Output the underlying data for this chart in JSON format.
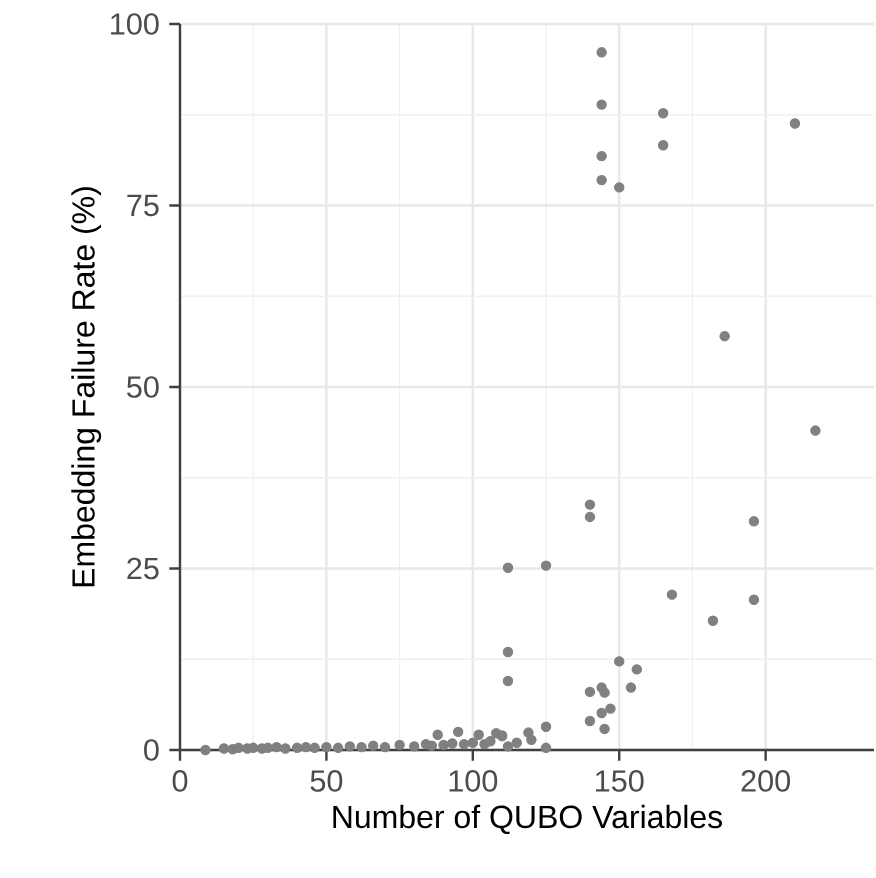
{
  "chart_data": {
    "type": "scatter",
    "xlabel": "Number of QUBO Variables",
    "ylabel": "Embedding Failure Rate (%)",
    "xlim": [
      0,
      237
    ],
    "ylim": [
      0,
      100
    ],
    "xticks": [
      0,
      50,
      100,
      150,
      200
    ],
    "yticks": [
      0,
      25,
      50,
      75,
      100
    ],
    "grid": true,
    "marker": "circle",
    "series": [
      {
        "color": "#808080",
        "x": [
          8.7,
          15,
          18,
          20,
          23,
          25,
          28,
          30,
          33,
          36,
          40,
          43,
          46,
          50,
          54,
          58,
          62,
          66,
          70,
          75,
          80,
          84,
          86,
          88,
          90,
          93,
          95,
          97,
          100,
          102,
          104,
          106,
          108,
          110,
          110,
          112,
          112,
          112,
          112,
          115,
          119,
          120,
          125,
          125,
          125,
          140,
          140,
          140,
          140,
          144,
          144,
          144,
          144,
          144,
          144,
          145,
          145,
          147,
          150,
          150,
          154,
          156,
          165,
          165,
          168,
          182,
          186,
          196,
          196,
          210,
          217
        ],
        "values": [
          0,
          0.2,
          0.1,
          0.3,
          0.2,
          0.3,
          0.2,
          0.3,
          0.4,
          0.2,
          0.3,
          0.4,
          0.3,
          0.4,
          0.3,
          0.5,
          0.4,
          0.6,
          0.4,
          0.7,
          0.5,
          0.8,
          0.6,
          2.1,
          0.7,
          0.9,
          2.5,
          0.8,
          1.0,
          2.1,
          0.8,
          1.2,
          2.3,
          2.0,
          1.9,
          25.1,
          13.5,
          9.5,
          0.5,
          1.0,
          2.4,
          1.4,
          25.4,
          3.2,
          0.3,
          33.8,
          32.1,
          8.0,
          4.0,
          96.1,
          88.9,
          81.8,
          78.5,
          8.6,
          5.1,
          7.9,
          2.9,
          5.7,
          77.5,
          12.2,
          8.6,
          11.1,
          87.7,
          83.3,
          21.4,
          17.8,
          57.0,
          31.5,
          20.7,
          86.3,
          44.0
        ]
      }
    ]
  }
}
